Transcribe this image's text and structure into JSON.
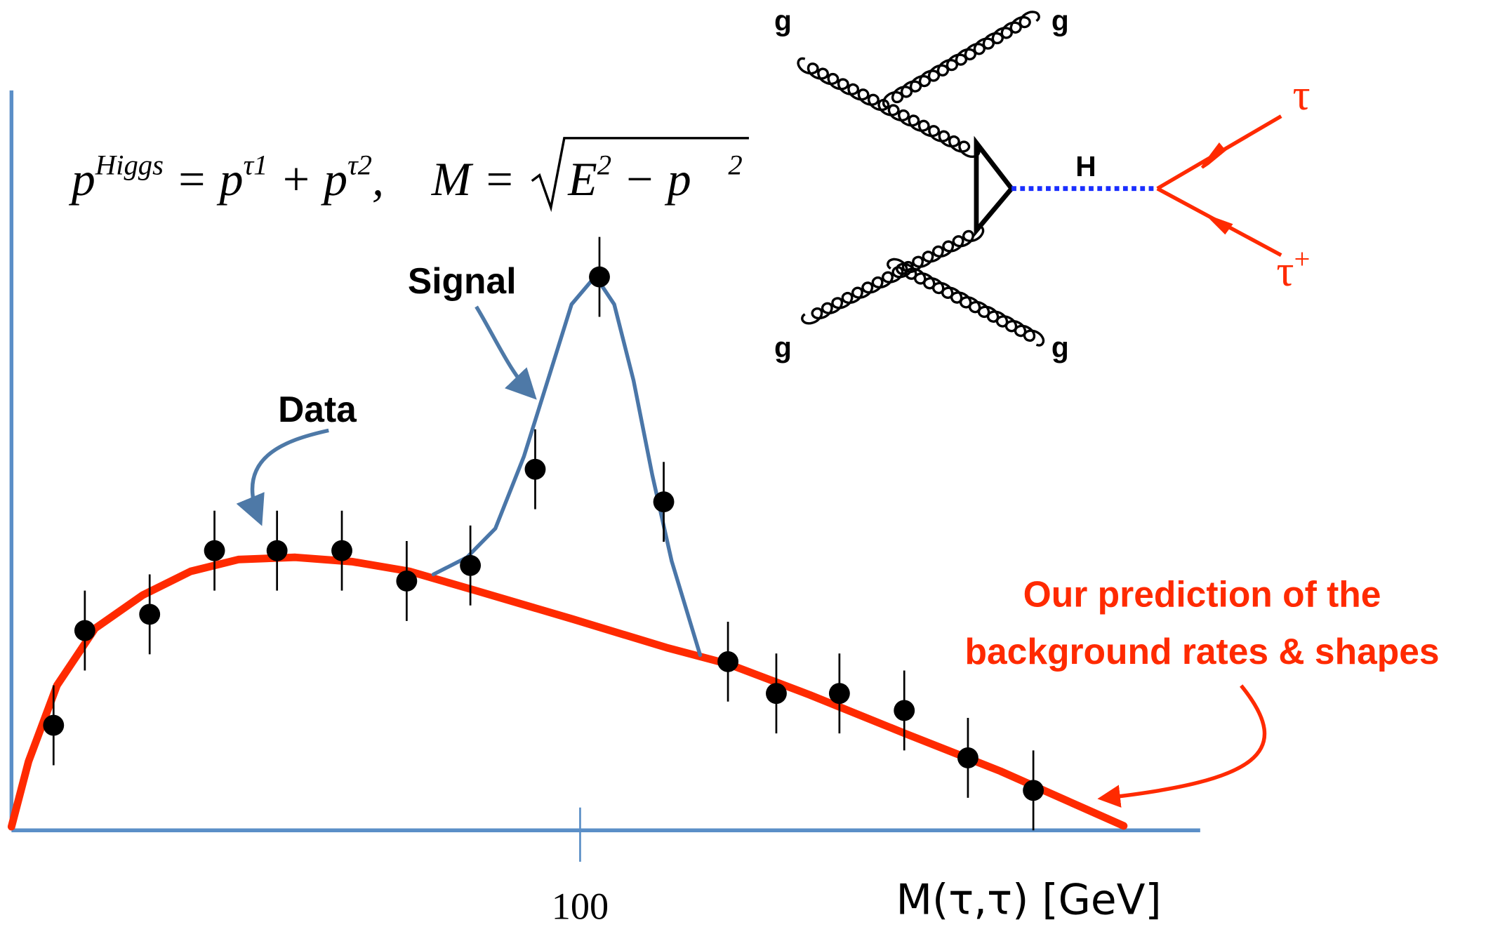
{
  "chart_data": {
    "type": "scatter",
    "x_label": "M(τ,τ) [GeV]",
    "xlim": [
      0,
      209
    ],
    "ylim": [
      0,
      100
    ],
    "xticks": [
      100
    ],
    "formula": {
      "parts": [
        {
          "text": "p"
        },
        {
          "text": "Higgs",
          "sup": true
        },
        {
          "text": " = p"
        },
        {
          "text": "τ1",
          "sup": true
        },
        {
          "text": " + p"
        },
        {
          "text": "τ2",
          "sup": true
        },
        {
          "text": ",    M = "
        }
      ],
      "radicand": [
        {
          "text": "E"
        },
        {
          "text": "2",
          "sup": true
        },
        {
          "text": " − "
        },
        {
          "text": "p⃗"
        },
        {
          "text": "2",
          "sup": true
        }
      ]
    },
    "annotations": {
      "data": "Data",
      "signal": "Signal",
      "prediction": [
        "Our prediction of the",
        "background rates & shapes"
      ]
    },
    "series": [
      {
        "type": "line",
        "color": "#ff2a00",
        "x": [
          0,
          3.0,
          8.0,
          14.7,
          23.1,
          31.5,
          39.9,
          49.9,
          60,
          70,
          81.7,
          98.5,
          115.2,
          126,
          140.4,
          157.1,
          173.9,
          195.6
        ],
        "values": [
          0.5,
          9.3,
          19.6,
          27.3,
          31.8,
          35.0,
          36.6,
          36.9,
          36.3,
          35.0,
          32.4,
          28.6,
          24.7,
          22.5,
          18.3,
          13.1,
          8.0,
          0.6
        ]
      },
      {
        "type": "line",
        "color": "#4a76a8",
        "x": [
          74.2,
          80.1,
          85.1,
          90.1,
          94.3,
          98.5,
          102.7,
          106,
          109.4,
          112.7,
          116.1,
          121.1
        ],
        "values": [
          34.6,
          36.9,
          40.8,
          50.5,
          60.8,
          71.1,
          74.9,
          71.1,
          60.8,
          48.0,
          36.4,
          23.7
        ]
      },
      {
        "type": "scatter",
        "color": "#000000",
        "x": [
          7.4,
          12.9,
          24.3,
          35.7,
          46.7,
          58.1,
          69.5,
          80.7,
          92.1,
          103.4,
          114.7,
          126,
          134.5,
          145.6,
          157,
          168.2,
          179.7
        ],
        "values": [
          14.2,
          27.0,
          29.2,
          37.8,
          37.8,
          37.8,
          33.7,
          35.8,
          48.8,
          74.8,
          44.4,
          22.8,
          18.5,
          18.5,
          16.2,
          9.8,
          5.4
        ],
        "errors": [
          5.4,
          5.4,
          5.4,
          5.4,
          5.4,
          5.4,
          5.4,
          5.4,
          5.4,
          5.4,
          5.4,
          5.4,
          5.4,
          5.4,
          5.4,
          5.4,
          5.4
        ]
      }
    ]
  },
  "diagram": {
    "gluons": [
      "g",
      "g",
      "g",
      "g"
    ],
    "boson": "H",
    "leptons": [
      {
        "text": "τ"
      },
      {
        "text": "τ",
        "sup": "+"
      }
    ]
  }
}
